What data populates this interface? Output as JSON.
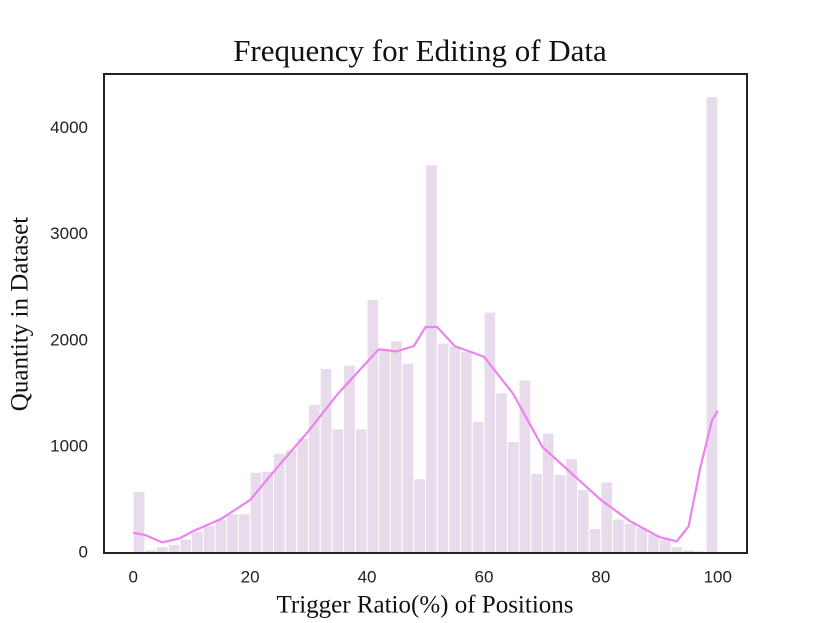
{
  "chart_data": {
    "type": "histogram",
    "title": "Frequency for Editing of Data",
    "xlabel": "Trigger Ratio(%) of Positions",
    "ylabel": "Quantity in Dataset",
    "bins": [
      0,
      2,
      4,
      6,
      8,
      10,
      12,
      14,
      16,
      18,
      20,
      22,
      24,
      26,
      28,
      30,
      32,
      34,
      36,
      38,
      40,
      42,
      44,
      46,
      48,
      50,
      52,
      54,
      56,
      58,
      60,
      62,
      64,
      66,
      68,
      70,
      72,
      74,
      76,
      78,
      80,
      82,
      84,
      86,
      88,
      90,
      92,
      94,
      96,
      98,
      100
    ],
    "values": [
      580,
      30,
      60,
      80,
      130,
      200,
      260,
      320,
      370,
      370,
      760,
      770,
      940,
      970,
      1080,
      1400,
      1740,
      1170,
      1770,
      1170,
      2390,
      1930,
      2000,
      1790,
      700,
      3660,
      1980,
      1950,
      1900,
      1240,
      2270,
      1510,
      1050,
      1630,
      750,
      1130,
      740,
      890,
      600,
      230,
      670,
      320,
      280,
      240,
      180,
      130,
      60,
      30,
      20,
      4300
    ],
    "color": "#e8dbeb",
    "kde": {
      "x": [
        0,
        2,
        5,
        8,
        10,
        15,
        20,
        25,
        30,
        35,
        40,
        42,
        45,
        48,
        50,
        52,
        55,
        60,
        65,
        70,
        75,
        80,
        85,
        90,
        93,
        95,
        97,
        99,
        100
      ],
      "values": [
        190,
        170,
        100,
        140,
        200,
        320,
        500,
        830,
        1150,
        1500,
        1800,
        1920,
        1900,
        1950,
        2130,
        2130,
        1950,
        1850,
        1500,
        1000,
        750,
        500,
        300,
        150,
        110,
        250,
        800,
        1250,
        1340
      ],
      "color": "#ee82ee"
    },
    "xlim": [
      -5,
      105
    ],
    "ylim": [
      0,
      4515
    ],
    "xticks": [
      0,
      20,
      40,
      60,
      80,
      100
    ],
    "yticks": [
      0,
      1000,
      2000,
      3000,
      4000
    ]
  }
}
